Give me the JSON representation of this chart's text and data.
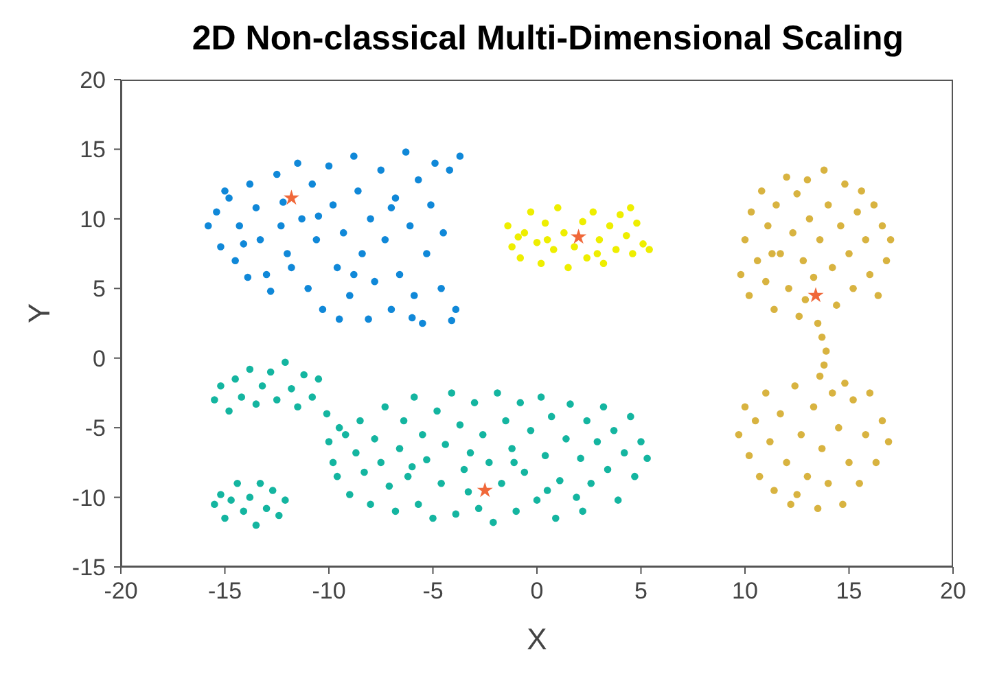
{
  "chart_data": {
    "type": "scatter",
    "title": "2D Non-classical Multi-Dimensional Scaling",
    "xlabel": "X",
    "ylabel": "Y",
    "xlim": [
      -20,
      20
    ],
    "xticks": [
      -20,
      -15,
      -10,
      -5,
      0,
      5,
      10,
      15,
      20
    ],
    "ylim": [
      -15,
      20
    ],
    "yticks": [
      -15,
      -10,
      -5,
      0,
      5,
      10,
      15,
      20
    ],
    "grid": false,
    "legend": false,
    "marker": "circle",
    "series": [
      {
        "color": "#1088d8",
        "x": [
          -15.8,
          -15.2,
          -15.4,
          -14.8,
          -14.5,
          -14.3,
          -13.8,
          -13.5,
          -13.3,
          -13,
          -12.8,
          -12.5,
          -12.3,
          -12,
          -11.5,
          -11.3,
          -11,
          -10.8,
          -10.6,
          -10.3,
          -10,
          -9.8,
          -9.6,
          -9.3,
          -9,
          -8.8,
          -8.6,
          -8.4,
          -8.1,
          -8,
          -7.8,
          -7.5,
          -7.3,
          -7,
          -6.8,
          -6.6,
          -6.3,
          -6.1,
          -5.9,
          -5.7,
          -5.5,
          -5.3,
          -5.1,
          -4.9,
          -4.6,
          -4.5,
          -4.2,
          -3.9,
          -3.7,
          -4.1,
          -9.5,
          -11.8,
          -13.9,
          -15,
          -12.2,
          -7,
          -6,
          -8.8,
          -10.5,
          -14.1
        ],
        "values": [
          9.5,
          8,
          10.5,
          11.5,
          7,
          9.5,
          12.5,
          10.8,
          8.5,
          6,
          4.8,
          13.2,
          9.5,
          7.5,
          14,
          10,
          5,
          12.5,
          8.5,
          3.5,
          13.8,
          11,
          6.5,
          9,
          4.5,
          14.5,
          12,
          7.5,
          2.8,
          10,
          5.5,
          13.5,
          8.5,
          3.5,
          11.5,
          6,
          14.8,
          9.5,
          4.5,
          12.8,
          2.5,
          7.5,
          11,
          14,
          5,
          9,
          13.5,
          3.5,
          14.5,
          2.7,
          2.8,
          6.5,
          5.8,
          12,
          11.2,
          10.8,
          2.9,
          6,
          10.2,
          8.2
        ]
      },
      {
        "color": "#eeee00",
        "x": [
          -1.4,
          -1.2,
          -0.8,
          -0.6,
          -0.3,
          0,
          0.2,
          0.4,
          0.8,
          1,
          1.3,
          1.5,
          1.8,
          2.2,
          2.4,
          2.7,
          3,
          3.2,
          3.5,
          3.8,
          4,
          4.3,
          4.6,
          4.8,
          5.1,
          5.4,
          0.5,
          2.9,
          -0.9,
          4.5
        ],
        "values": [
          9.5,
          8,
          7.2,
          9,
          10.5,
          8.3,
          6.8,
          9.7,
          7.8,
          10.8,
          9,
          6.5,
          8,
          9.8,
          7.2,
          10.5,
          8.5,
          6.8,
          9.5,
          7.8,
          10.3,
          8.8,
          7.5,
          9.7,
          8.2,
          7.8,
          8.5,
          7.5,
          8.7,
          10.8
        ]
      },
      {
        "color": "#14b5a0",
        "x": [
          -15.5,
          -15.2,
          -14.8,
          -14.5,
          -14.2,
          -13.8,
          -13.5,
          -13.2,
          -12.8,
          -12.5,
          -12.1,
          -11.8,
          -11.5,
          -11.2,
          -10.8,
          -10.5,
          -10.1,
          -9.5,
          -15.5,
          -15.2,
          -15,
          -14.7,
          -14.4,
          -14.1,
          -13.8,
          -13.5,
          -13.3,
          -13,
          -12.7,
          -12.4,
          -12.1,
          -10,
          -9.8,
          -9.6,
          -9.2,
          -9,
          -8.7,
          -8.5,
          -8.3,
          -8,
          -7.8,
          -7.5,
          -7.3,
          -7.1,
          -6.8,
          -6.6,
          -6.4,
          -6.2,
          -5.9,
          -5.7,
          -5.5,
          -5.3,
          -5,
          -4.8,
          -4.6,
          -4.4,
          -4.1,
          -3.9,
          -3.7,
          -3.5,
          -3.2,
          -3,
          -2.8,
          -2.6,
          -2.3,
          -2.1,
          -1.9,
          -1.7,
          -1.5,
          -1.2,
          -1,
          -0.8,
          -0.6,
          -0.3,
          0,
          0.2,
          0.4,
          0.7,
          0.9,
          1.1,
          1.4,
          1.6,
          1.9,
          2.1,
          2.4,
          2.6,
          2.9,
          3.2,
          3.4,
          3.7,
          3.9,
          4.2,
          4.5,
          4.7,
          5,
          5.3,
          -6,
          -3.3,
          0.5,
          -1.1,
          2.2
        ],
        "values": [
          -3,
          -2,
          -3.8,
          -1.5,
          -2.8,
          -0.8,
          -3.3,
          -2,
          -1,
          -3,
          -0.3,
          -2.2,
          -3.5,
          -1.2,
          -2.8,
          -1.5,
          -4,
          -5,
          -10.5,
          -9.8,
          -11.5,
          -10.2,
          -9,
          -11,
          -10,
          -12,
          -9,
          -10.8,
          -9.5,
          -11.3,
          -10.2,
          -6,
          -7.5,
          -8.5,
          -5.5,
          -9.8,
          -6.8,
          -4.5,
          -8.2,
          -10.5,
          -5.8,
          -7.5,
          -3.5,
          -9.2,
          -11,
          -6.5,
          -4.5,
          -8.5,
          -2.8,
          -10.5,
          -5.5,
          -7.3,
          -11.5,
          -3.8,
          -9,
          -6.2,
          -2.5,
          -11.2,
          -4.8,
          -8,
          -6.8,
          -3.2,
          -10.8,
          -5.5,
          -7.5,
          -11.8,
          -2.5,
          -9,
          -4.5,
          -6.5,
          -11,
          -3.2,
          -8.2,
          -5.2,
          -10.2,
          -2.8,
          -7,
          -4.2,
          -11.5,
          -8.8,
          -5.8,
          -3.3,
          -10,
          -7.2,
          -4.5,
          -9,
          -6,
          -3.5,
          -8,
          -5.2,
          -10.2,
          -6.8,
          -4.2,
          -8.5,
          -6,
          -7.2,
          -7.8,
          -9.6,
          -9.5,
          -7.5,
          -11
        ]
      },
      {
        "color": "#d8b340",
        "x": [
          9.8,
          10,
          10.2,
          10.3,
          10.6,
          10.8,
          11,
          11.1,
          11.4,
          11.5,
          11.7,
          12,
          12.1,
          12.3,
          12.5,
          12.6,
          12.8,
          13,
          13.1,
          13.3,
          13.6,
          13.8,
          14,
          14.2,
          14.4,
          14.6,
          14.8,
          15,
          15.2,
          15.4,
          15.6,
          15.8,
          16,
          16.2,
          16.4,
          16.6,
          16.8,
          17,
          11.3,
          12.9,
          13.5,
          13.7,
          13.9,
          13.8,
          13.6,
          9.7,
          10,
          10.2,
          10.5,
          10.7,
          11,
          11.2,
          11.4,
          11.7,
          12,
          12.2,
          12.4,
          12.7,
          13,
          13.3,
          13.5,
          13.7,
          14,
          14.2,
          14.5,
          14.7,
          15,
          15.2,
          15.5,
          15.8,
          16,
          16.3,
          16.6,
          16.9,
          14.8,
          12.5
        ],
        "values": [
          6,
          8.5,
          4.5,
          10.5,
          7,
          12,
          5.5,
          9.5,
          3.5,
          11,
          7.5,
          13,
          5,
          9,
          11.8,
          3,
          7,
          12.8,
          10,
          5.8,
          8.5,
          13.5,
          11,
          6.5,
          3.8,
          9.5,
          12.5,
          7.5,
          5,
          10.5,
          12,
          8.5,
          6,
          11,
          4.5,
          9.5,
          7,
          8.5,
          7.5,
          4.2,
          2.5,
          1.5,
          0.5,
          -0.5,
          -1.3,
          -5.5,
          -3.5,
          -7,
          -4.5,
          -8.5,
          -2.5,
          -6,
          -9.5,
          -4,
          -7.5,
          -10.5,
          -2,
          -5.5,
          -8.5,
          -3.5,
          -10.8,
          -6.5,
          -9,
          -2.5,
          -5,
          -10.5,
          -7.5,
          -3,
          -9,
          -5.5,
          -2.5,
          -7.5,
          -4.5,
          -6,
          -1.8,
          -9.8
        ]
      },
      {
        "color": "#f0683a",
        "marker": "star",
        "x": [
          -11.8,
          2,
          -2.5,
          13.4
        ],
        "values": [
          11.5,
          8.7,
          -9.5,
          4.5
        ]
      }
    ]
  }
}
